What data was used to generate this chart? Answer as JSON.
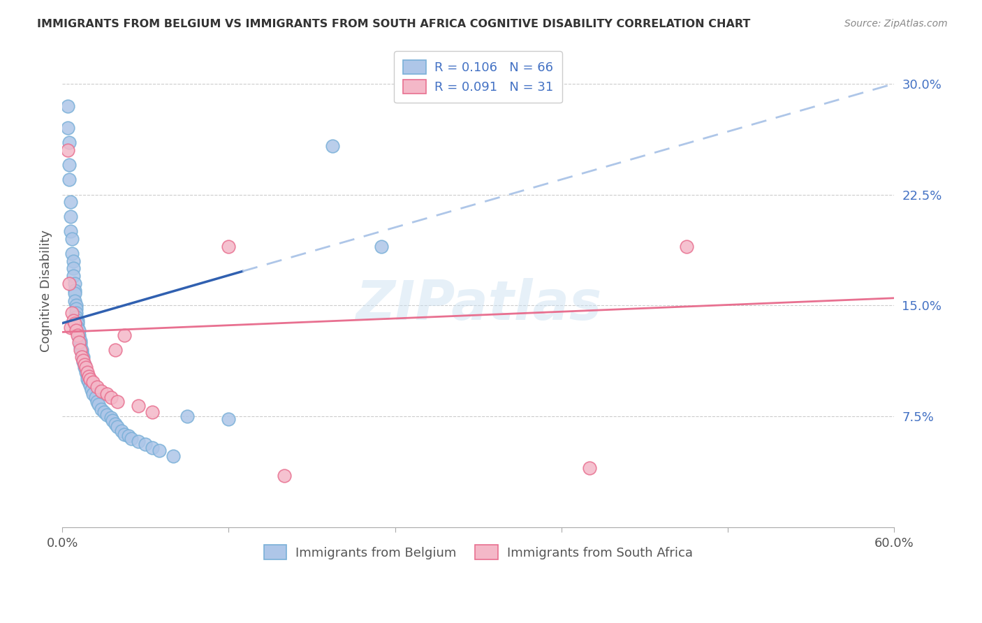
{
  "title": "IMMIGRANTS FROM BELGIUM VS IMMIGRANTS FROM SOUTH AFRICA COGNITIVE DISABILITY CORRELATION CHART",
  "source": "Source: ZipAtlas.com",
  "ylabel": "Cognitive Disability",
  "xlim": [
    0.0,
    0.6
  ],
  "ylim": [
    0.0,
    0.32
  ],
  "right_yticks": [
    0.075,
    0.15,
    0.225,
    0.3
  ],
  "right_yticklabels": [
    "7.5%",
    "15.0%",
    "22.5%",
    "30.0%"
  ],
  "legend_r1": "R = 0.106",
  "legend_n1": "N = 66",
  "legend_r2": "R = 0.091",
  "legend_n2": "N = 31",
  "belgium_color_face": "#aec6e8",
  "belgium_color_edge": "#7ab0d8",
  "sa_color_face": "#f4b8c8",
  "sa_color_edge": "#e87090",
  "belgium_trend_color": "#3060b0",
  "sa_trend_color": "#e87090",
  "dashed_line_color": "#aec6e8",
  "watermark": "ZIPatlas",
  "belgium_x": [
    0.004,
    0.004,
    0.005,
    0.005,
    0.005,
    0.006,
    0.006,
    0.006,
    0.007,
    0.007,
    0.008,
    0.008,
    0.008,
    0.009,
    0.009,
    0.009,
    0.009,
    0.01,
    0.01,
    0.01,
    0.01,
    0.011,
    0.011,
    0.011,
    0.012,
    0.012,
    0.012,
    0.013,
    0.013,
    0.013,
    0.014,
    0.014,
    0.015,
    0.015,
    0.016,
    0.016,
    0.017,
    0.018,
    0.018,
    0.019,
    0.02,
    0.021,
    0.022,
    0.024,
    0.025,
    0.026,
    0.028,
    0.03,
    0.032,
    0.035,
    0.036,
    0.038,
    0.04,
    0.043,
    0.045,
    0.048,
    0.05,
    0.055,
    0.06,
    0.065,
    0.07,
    0.08,
    0.09,
    0.12,
    0.195,
    0.23
  ],
  "belgium_y": [
    0.285,
    0.27,
    0.26,
    0.245,
    0.235,
    0.22,
    0.21,
    0.2,
    0.195,
    0.185,
    0.18,
    0.175,
    0.17,
    0.165,
    0.16,
    0.158,
    0.153,
    0.15,
    0.148,
    0.145,
    0.142,
    0.14,
    0.138,
    0.135,
    0.133,
    0.13,
    0.128,
    0.126,
    0.124,
    0.122,
    0.12,
    0.118,
    0.115,
    0.112,
    0.11,
    0.108,
    0.105,
    0.102,
    0.1,
    0.098,
    0.096,
    0.093,
    0.09,
    0.088,
    0.085,
    0.083,
    0.08,
    0.078,
    0.076,
    0.074,
    0.072,
    0.07,
    0.068,
    0.065,
    0.063,
    0.062,
    0.06,
    0.058,
    0.056,
    0.054,
    0.052,
    0.048,
    0.075,
    0.073,
    0.258,
    0.19
  ],
  "sa_x": [
    0.004,
    0.005,
    0.006,
    0.007,
    0.008,
    0.009,
    0.01,
    0.011,
    0.012,
    0.013,
    0.014,
    0.015,
    0.016,
    0.017,
    0.018,
    0.019,
    0.02,
    0.022,
    0.025,
    0.028,
    0.032,
    0.035,
    0.038,
    0.04,
    0.045,
    0.055,
    0.065,
    0.12,
    0.16,
    0.38,
    0.45
  ],
  "sa_y": [
    0.255,
    0.165,
    0.135,
    0.145,
    0.14,
    0.138,
    0.133,
    0.13,
    0.125,
    0.12,
    0.115,
    0.113,
    0.11,
    0.108,
    0.105,
    0.102,
    0.1,
    0.098,
    0.095,
    0.092,
    0.09,
    0.088,
    0.12,
    0.085,
    0.13,
    0.082,
    0.078,
    0.19,
    0.035,
    0.04,
    0.19
  ]
}
